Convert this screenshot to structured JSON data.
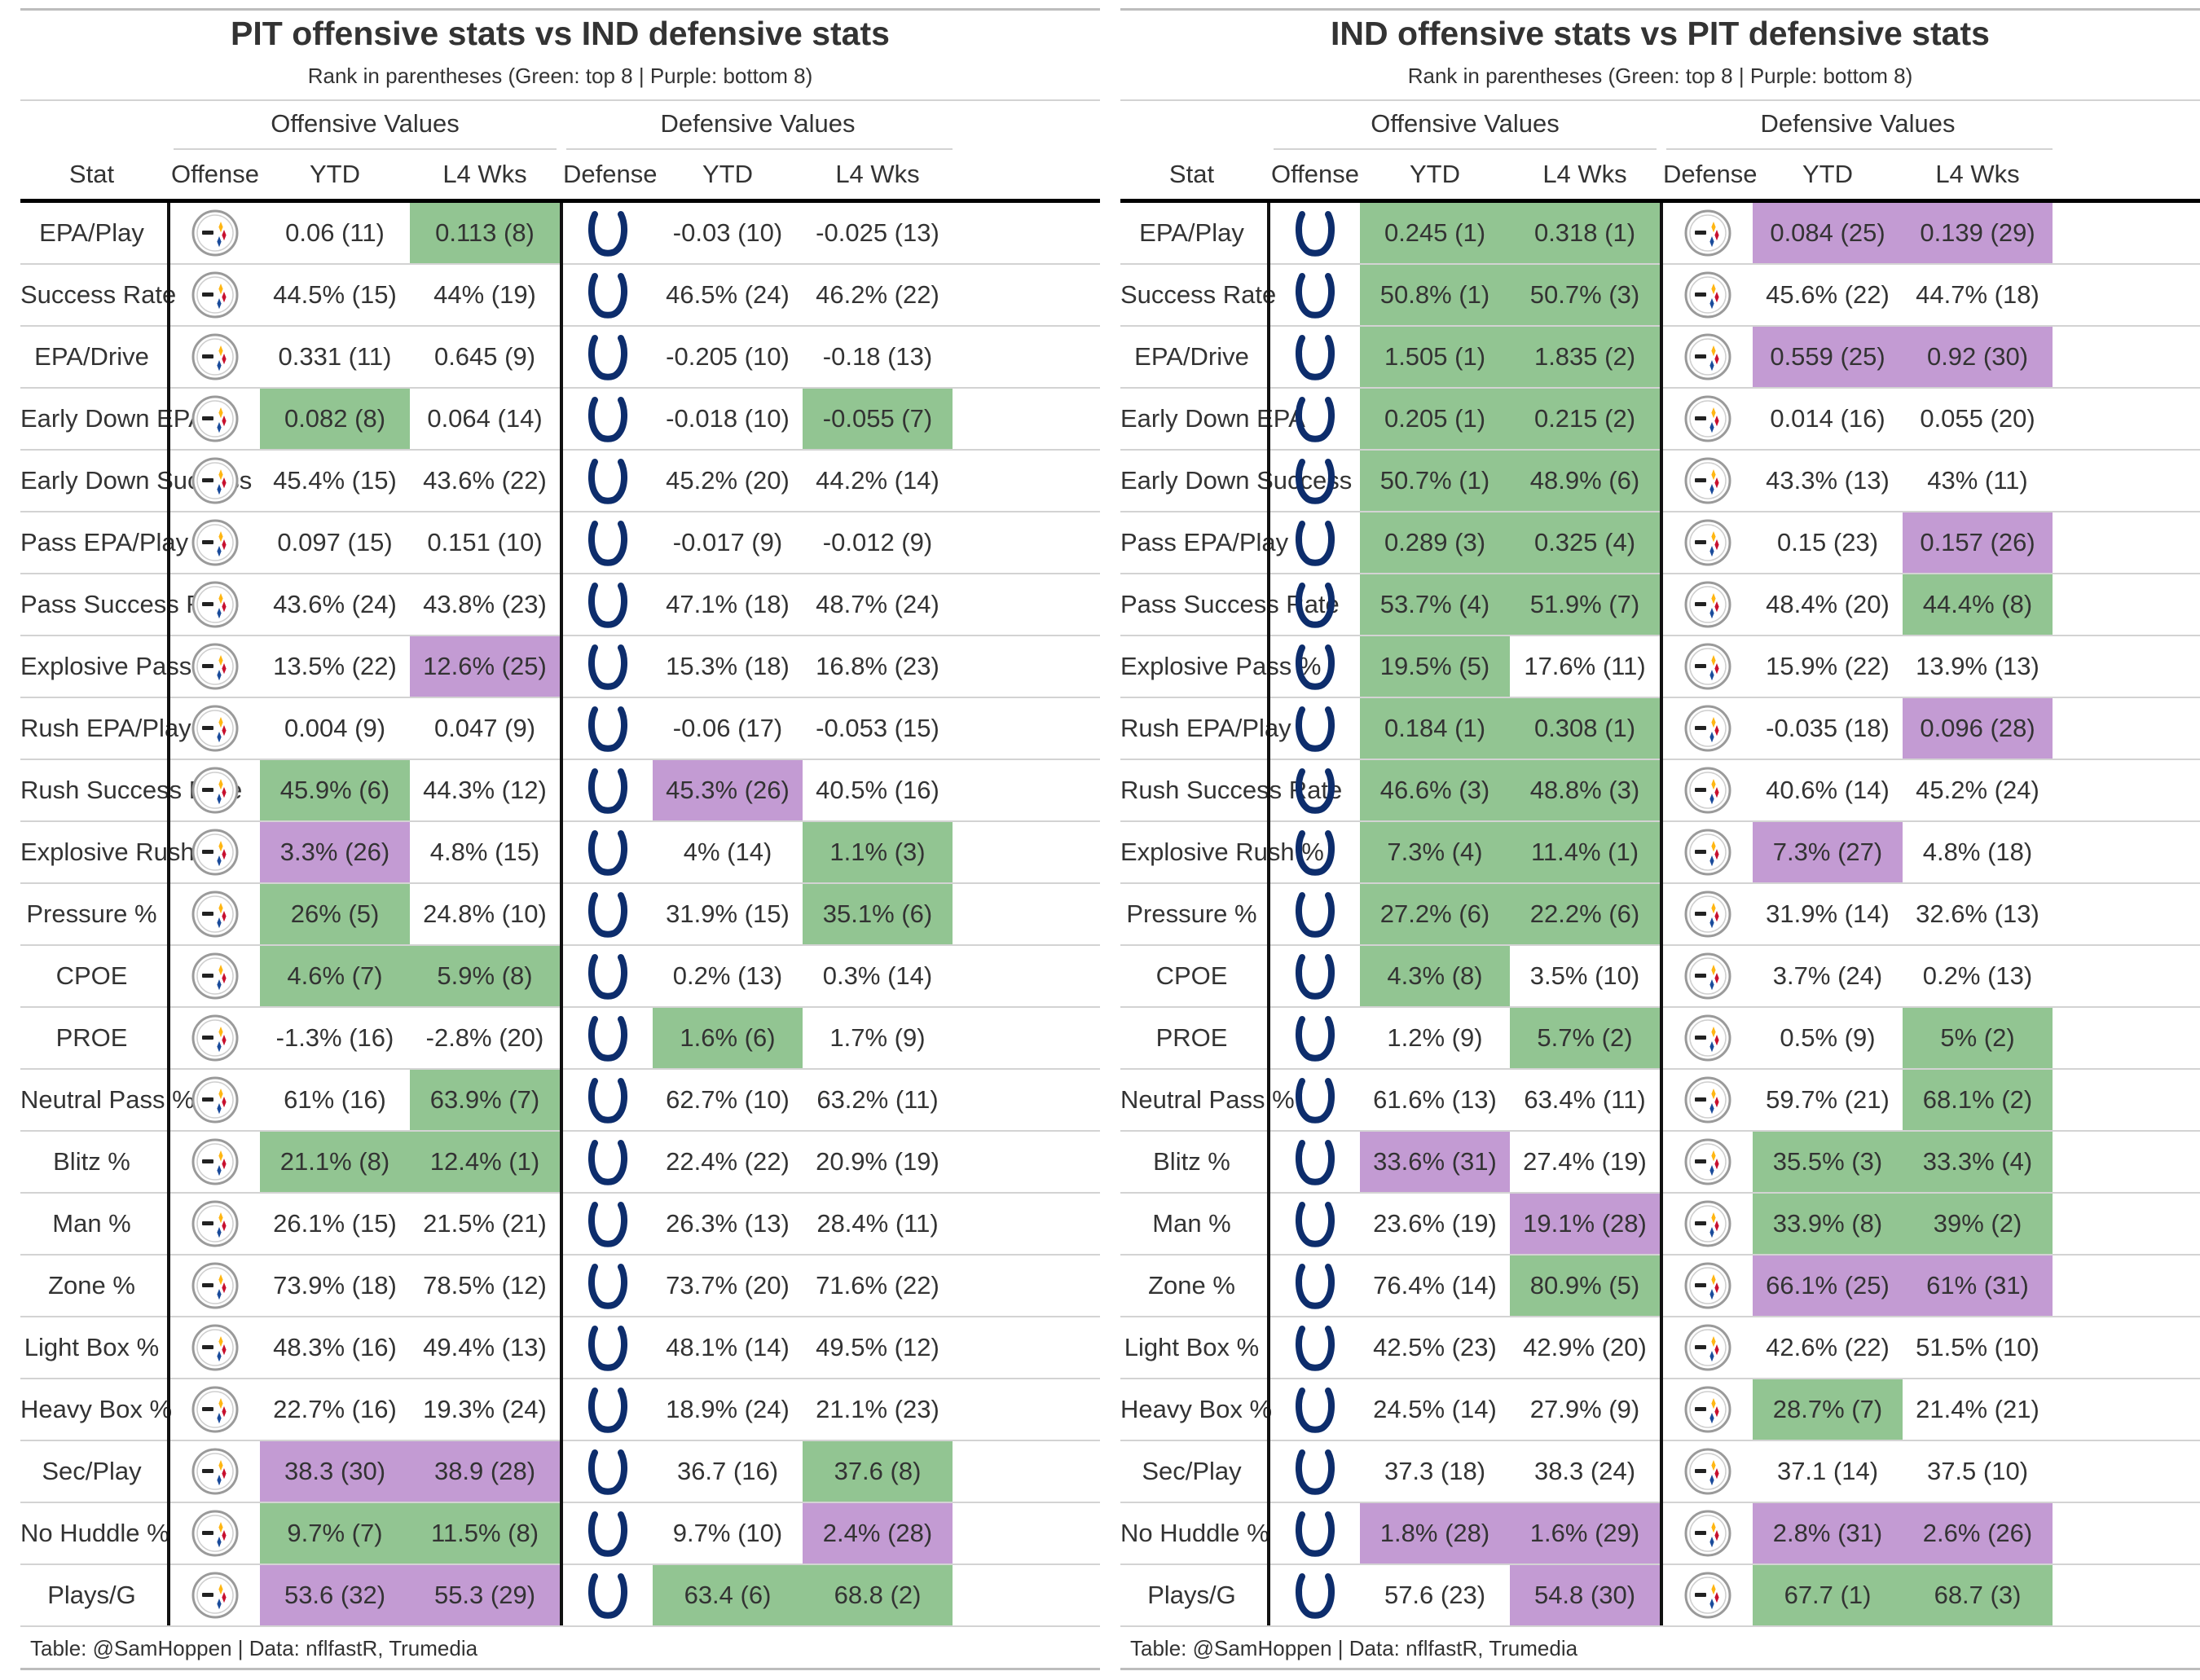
{
  "colors": {
    "green": "#92c592",
    "purple": "#c39bd3",
    "colts_blue": "#0d2d6c",
    "steelers_gold": "#ffb612",
    "steelers_red": "#c8102e",
    "steelers_blue": "#1a4b9b"
  },
  "column_headers": {
    "stat": "Stat",
    "offensive_values": "Offensive Values",
    "defensive_values": "Defensive Values",
    "offense": "Offense",
    "defense": "Defense",
    "ytd": "YTD",
    "l4": "L4 Wks"
  },
  "tables": [
    {
      "title": "PIT offensive stats vs IND defensive stats",
      "subtitle": "Rank in parentheses (Green: top 8 | Purple: bottom 8)",
      "offense_logo": "steelers-logo",
      "defense_logo": "colts-horseshoe-logo",
      "source": "Table: @SamHoppen | Data: nflfastR, Trumedia",
      "rows": [
        {
          "stat": "EPA/Play",
          "oy": "0.06 (11)",
          "oyc": "",
          "ol": "0.113 (8)",
          "olc": "green",
          "dy": "-0.03 (10)",
          "dyc": "",
          "dl": "-0.025 (13)",
          "dlc": ""
        },
        {
          "stat": "Success Rate",
          "oy": "44.5% (15)",
          "oyc": "",
          "ol": "44% (19)",
          "olc": "",
          "dy": "46.5% (24)",
          "dyc": "",
          "dl": "46.2% (22)",
          "dlc": ""
        },
        {
          "stat": "EPA/Drive",
          "oy": "0.331 (11)",
          "oyc": "",
          "ol": "0.645 (9)",
          "olc": "",
          "dy": "-0.205 (10)",
          "dyc": "",
          "dl": "-0.18 (13)",
          "dlc": ""
        },
        {
          "stat": "Early Down EPA",
          "oy": "0.082 (8)",
          "oyc": "green",
          "ol": "0.064 (14)",
          "olc": "",
          "dy": "-0.018 (10)",
          "dyc": "",
          "dl": "-0.055 (7)",
          "dlc": "green"
        },
        {
          "stat": "Early Down Success",
          "oy": "45.4% (15)",
          "oyc": "",
          "ol": "43.6% (22)",
          "olc": "",
          "dy": "45.2% (20)",
          "dyc": "",
          "dl": "44.2% (14)",
          "dlc": ""
        },
        {
          "stat": "Pass EPA/Play",
          "oy": "0.097 (15)",
          "oyc": "",
          "ol": "0.151 (10)",
          "olc": "",
          "dy": "-0.017 (9)",
          "dyc": "",
          "dl": "-0.012 (9)",
          "dlc": ""
        },
        {
          "stat": "Pass Success Rate",
          "oy": "43.6% (24)",
          "oyc": "",
          "ol": "43.8% (23)",
          "olc": "",
          "dy": "47.1% (18)",
          "dyc": "",
          "dl": "48.7% (24)",
          "dlc": ""
        },
        {
          "stat": "Explosive Pass %",
          "oy": "13.5% (22)",
          "oyc": "",
          "ol": "12.6% (25)",
          "olc": "purple",
          "dy": "15.3% (18)",
          "dyc": "",
          "dl": "16.8% (23)",
          "dlc": ""
        },
        {
          "stat": "Rush EPA/Play",
          "oy": "0.004 (9)",
          "oyc": "",
          "ol": "0.047 (9)",
          "olc": "",
          "dy": "-0.06 (17)",
          "dyc": "",
          "dl": "-0.053 (15)",
          "dlc": ""
        },
        {
          "stat": "Rush Success Rate",
          "oy": "45.9% (6)",
          "oyc": "green",
          "ol": "44.3% (12)",
          "olc": "",
          "dy": "45.3% (26)",
          "dyc": "purple",
          "dl": "40.5% (16)",
          "dlc": ""
        },
        {
          "stat": "Explosive Rush %",
          "oy": "3.3% (26)",
          "oyc": "purple",
          "ol": "4.8% (15)",
          "olc": "",
          "dy": "4% (14)",
          "dyc": "",
          "dl": "1.1% (3)",
          "dlc": "green"
        },
        {
          "stat": "Pressure %",
          "oy": "26% (5)",
          "oyc": "green",
          "ol": "24.8% (10)",
          "olc": "",
          "dy": "31.9% (15)",
          "dyc": "",
          "dl": "35.1% (6)",
          "dlc": "green"
        },
        {
          "stat": "CPOE",
          "oy": "4.6% (7)",
          "oyc": "green",
          "ol": "5.9% (8)",
          "olc": "green",
          "dy": "0.2% (13)",
          "dyc": "",
          "dl": "0.3% (14)",
          "dlc": ""
        },
        {
          "stat": "PROE",
          "oy": "-1.3% (16)",
          "oyc": "",
          "ol": "-2.8% (20)",
          "olc": "",
          "dy": "1.6% (6)",
          "dyc": "green",
          "dl": "1.7% (9)",
          "dlc": ""
        },
        {
          "stat": "Neutral Pass %",
          "oy": "61% (16)",
          "oyc": "",
          "ol": "63.9% (7)",
          "olc": "green",
          "dy": "62.7% (10)",
          "dyc": "",
          "dl": "63.2% (11)",
          "dlc": ""
        },
        {
          "stat": "Blitz %",
          "oy": "21.1% (8)",
          "oyc": "green",
          "ol": "12.4% (1)",
          "olc": "green",
          "dy": "22.4% (22)",
          "dyc": "",
          "dl": "20.9% (19)",
          "dlc": ""
        },
        {
          "stat": "Man %",
          "oy": "26.1% (15)",
          "oyc": "",
          "ol": "21.5% (21)",
          "olc": "",
          "dy": "26.3% (13)",
          "dyc": "",
          "dl": "28.4% (11)",
          "dlc": ""
        },
        {
          "stat": "Zone %",
          "oy": "73.9% (18)",
          "oyc": "",
          "ol": "78.5% (12)",
          "olc": "",
          "dy": "73.7% (20)",
          "dyc": "",
          "dl": "71.6% (22)",
          "dlc": ""
        },
        {
          "stat": "Light Box %",
          "oy": "48.3% (16)",
          "oyc": "",
          "ol": "49.4% (13)",
          "olc": "",
          "dy": "48.1% (14)",
          "dyc": "",
          "dl": "49.5% (12)",
          "dlc": ""
        },
        {
          "stat": "Heavy Box %",
          "oy": "22.7% (16)",
          "oyc": "",
          "ol": "19.3% (24)",
          "olc": "",
          "dy": "18.9% (24)",
          "dyc": "",
          "dl": "21.1% (23)",
          "dlc": ""
        },
        {
          "stat": "Sec/Play",
          "oy": "38.3 (30)",
          "oyc": "purple",
          "ol": "38.9 (28)",
          "olc": "purple",
          "dy": "36.7 (16)",
          "dyc": "",
          "dl": "37.6 (8)",
          "dlc": "green"
        },
        {
          "stat": "No Huddle %",
          "oy": "9.7% (7)",
          "oyc": "green",
          "ol": "11.5% (8)",
          "olc": "green",
          "dy": "9.7% (10)",
          "dyc": "",
          "dl": "2.4% (28)",
          "dlc": "purple"
        },
        {
          "stat": "Plays/G",
          "oy": "53.6 (32)",
          "oyc": "purple",
          "ol": "55.3 (29)",
          "olc": "purple",
          "dy": "63.4 (6)",
          "dyc": "green",
          "dl": "68.8 (2)",
          "dlc": "green"
        }
      ]
    },
    {
      "title": "IND offensive stats vs PIT defensive stats",
      "subtitle": "Rank in parentheses (Green: top 8 | Purple: bottom 8)",
      "offense_logo": "colts-horseshoe-logo",
      "defense_logo": "steelers-logo",
      "source": "Table: @SamHoppen | Data: nflfastR, Trumedia",
      "rows": [
        {
          "stat": "EPA/Play",
          "oy": "0.245 (1)",
          "oyc": "green",
          "ol": "0.318 (1)",
          "olc": "green",
          "dy": "0.084 (25)",
          "dyc": "purple",
          "dl": "0.139 (29)",
          "dlc": "purple"
        },
        {
          "stat": "Success Rate",
          "oy": "50.8% (1)",
          "oyc": "green",
          "ol": "50.7% (3)",
          "olc": "green",
          "dy": "45.6% (22)",
          "dyc": "",
          "dl": "44.7% (18)",
          "dlc": ""
        },
        {
          "stat": "EPA/Drive",
          "oy": "1.505 (1)",
          "oyc": "green",
          "ol": "1.835 (2)",
          "olc": "green",
          "dy": "0.559 (25)",
          "dyc": "purple",
          "dl": "0.92 (30)",
          "dlc": "purple"
        },
        {
          "stat": "Early Down EPA",
          "oy": "0.205 (1)",
          "oyc": "green",
          "ol": "0.215 (2)",
          "olc": "green",
          "dy": "0.014 (16)",
          "dyc": "",
          "dl": "0.055 (20)",
          "dlc": ""
        },
        {
          "stat": "Early Down Success",
          "oy": "50.7% (1)",
          "oyc": "green",
          "ol": "48.9% (6)",
          "olc": "green",
          "dy": "43.3% (13)",
          "dyc": "",
          "dl": "43% (11)",
          "dlc": ""
        },
        {
          "stat": "Pass EPA/Play",
          "oy": "0.289 (3)",
          "oyc": "green",
          "ol": "0.325 (4)",
          "olc": "green",
          "dy": "0.15 (23)",
          "dyc": "",
          "dl": "0.157 (26)",
          "dlc": "purple"
        },
        {
          "stat": "Pass Success Rate",
          "oy": "53.7% (4)",
          "oyc": "green",
          "ol": "51.9% (7)",
          "olc": "green",
          "dy": "48.4% (20)",
          "dyc": "",
          "dl": "44.4% (8)",
          "dlc": "green"
        },
        {
          "stat": "Explosive Pass %",
          "oy": "19.5% (5)",
          "oyc": "green",
          "ol": "17.6% (11)",
          "olc": "",
          "dy": "15.9% (22)",
          "dyc": "",
          "dl": "13.9% (13)",
          "dlc": ""
        },
        {
          "stat": "Rush EPA/Play",
          "oy": "0.184 (1)",
          "oyc": "green",
          "ol": "0.308 (1)",
          "olc": "green",
          "dy": "-0.035 (18)",
          "dyc": "",
          "dl": "0.096 (28)",
          "dlc": "purple"
        },
        {
          "stat": "Rush Success Rate",
          "oy": "46.6% (3)",
          "oyc": "green",
          "ol": "48.8% (3)",
          "olc": "green",
          "dy": "40.6% (14)",
          "dyc": "",
          "dl": "45.2% (24)",
          "dlc": ""
        },
        {
          "stat": "Explosive Rush %",
          "oy": "7.3% (4)",
          "oyc": "green",
          "ol": "11.4% (1)",
          "olc": "green",
          "dy": "7.3% (27)",
          "dyc": "purple",
          "dl": "4.8% (18)",
          "dlc": ""
        },
        {
          "stat": "Pressure %",
          "oy": "27.2% (6)",
          "oyc": "green",
          "ol": "22.2% (6)",
          "olc": "green",
          "dy": "31.9% (14)",
          "dyc": "",
          "dl": "32.6% (13)",
          "dlc": ""
        },
        {
          "stat": "CPOE",
          "oy": "4.3% (8)",
          "oyc": "green",
          "ol": "3.5% (10)",
          "olc": "",
          "dy": "3.7% (24)",
          "dyc": "",
          "dl": "0.2% (13)",
          "dlc": ""
        },
        {
          "stat": "PROE",
          "oy": "1.2% (9)",
          "oyc": "",
          "ol": "5.7% (2)",
          "olc": "green",
          "dy": "0.5% (9)",
          "dyc": "",
          "dl": "5% (2)",
          "dlc": "green"
        },
        {
          "stat": "Neutral Pass %",
          "oy": "61.6% (13)",
          "oyc": "",
          "ol": "63.4% (11)",
          "olc": "",
          "dy": "59.7% (21)",
          "dyc": "",
          "dl": "68.1% (2)",
          "dlc": "green"
        },
        {
          "stat": "Blitz %",
          "oy": "33.6% (31)",
          "oyc": "purple",
          "ol": "27.4% (19)",
          "olc": "",
          "dy": "35.5% (3)",
          "dyc": "green",
          "dl": "33.3% (4)",
          "dlc": "green"
        },
        {
          "stat": "Man %",
          "oy": "23.6% (19)",
          "oyc": "",
          "ol": "19.1% (28)",
          "olc": "purple",
          "dy": "33.9% (8)",
          "dyc": "green",
          "dl": "39% (2)",
          "dlc": "green"
        },
        {
          "stat": "Zone %",
          "oy": "76.4% (14)",
          "oyc": "",
          "ol": "80.9% (5)",
          "olc": "green",
          "dy": "66.1% (25)",
          "dyc": "purple",
          "dl": "61% (31)",
          "dlc": "purple"
        },
        {
          "stat": "Light Box %",
          "oy": "42.5% (23)",
          "oyc": "",
          "ol": "42.9% (20)",
          "olc": "",
          "dy": "42.6% (22)",
          "dyc": "",
          "dl": "51.5% (10)",
          "dlc": ""
        },
        {
          "stat": "Heavy Box %",
          "oy": "24.5% (14)",
          "oyc": "",
          "ol": "27.9% (9)",
          "olc": "",
          "dy": "28.7% (7)",
          "dyc": "green",
          "dl": "21.4% (21)",
          "dlc": ""
        },
        {
          "stat": "Sec/Play",
          "oy": "37.3 (18)",
          "oyc": "",
          "ol": "38.3 (24)",
          "olc": "",
          "dy": "37.1 (14)",
          "dyc": "",
          "dl": "37.5 (10)",
          "dlc": ""
        },
        {
          "stat": "No Huddle %",
          "oy": "1.8% (28)",
          "oyc": "purple",
          "ol": "1.6% (29)",
          "olc": "purple",
          "dy": "2.8% (31)",
          "dyc": "purple",
          "dl": "2.6% (26)",
          "dlc": "purple"
        },
        {
          "stat": "Plays/G",
          "oy": "57.6 (23)",
          "oyc": "",
          "ol": "54.8 (30)",
          "olc": "purple",
          "dy": "67.7 (1)",
          "dyc": "green",
          "dl": "68.7 (3)",
          "dlc": "green"
        }
      ]
    }
  ]
}
